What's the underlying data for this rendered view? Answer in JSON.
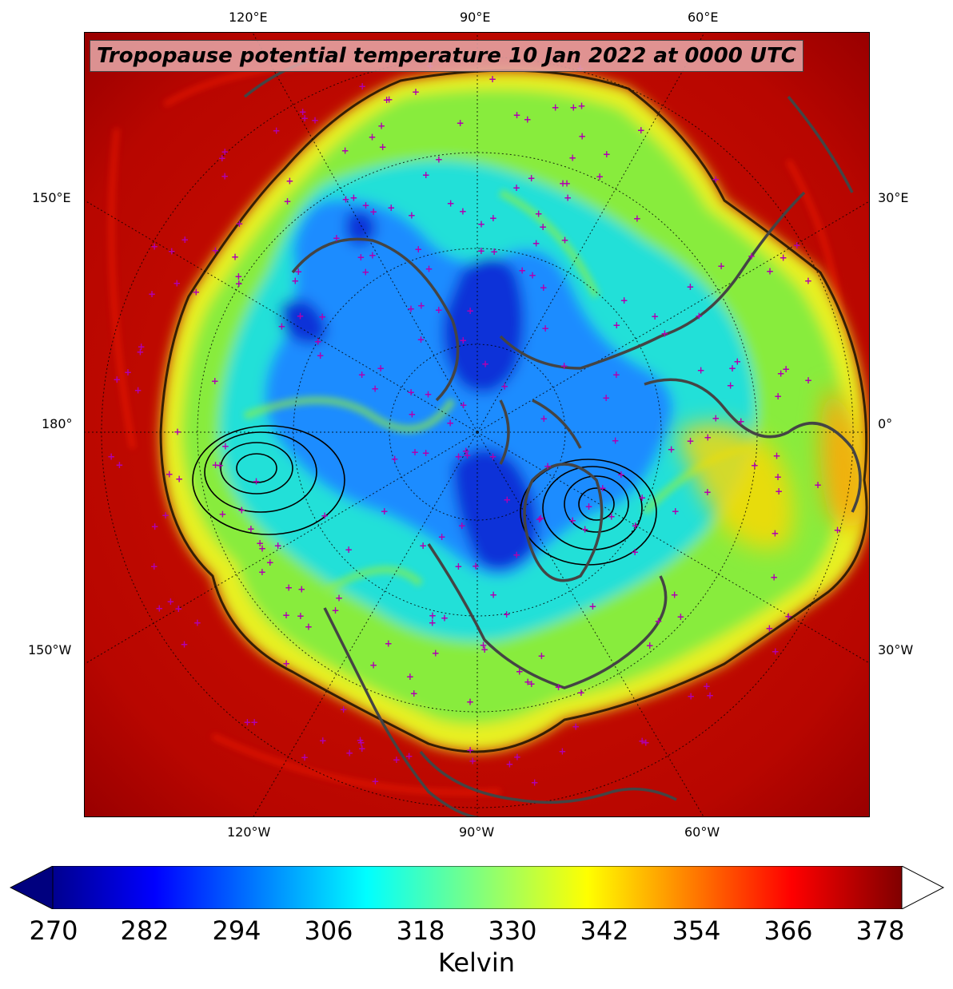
{
  "title": "Tropopause potential temperature 10 Jan 2022 at 0000 UTC",
  "map": {
    "projection": "north-polar-stereographic",
    "top_labels": [
      "120°E",
      "90°E",
      "60°E"
    ],
    "bottom_labels": [
      "120°W",
      "90°W",
      "60°W"
    ],
    "left_labels": [
      "150°E",
      "180°",
      "150°W"
    ],
    "right_labels": [
      "30°E",
      "0°",
      "30°W"
    ],
    "station_marker_color": "#b000b0",
    "coastline_color": "#444444"
  },
  "colorbar": {
    "colormap": "jet",
    "ticks": [
      "270",
      "282",
      "294",
      "306",
      "318",
      "330",
      "342",
      "354",
      "366",
      "378"
    ],
    "min": 270,
    "max": 382,
    "extend": "both",
    "label": "Kelvin"
  }
}
